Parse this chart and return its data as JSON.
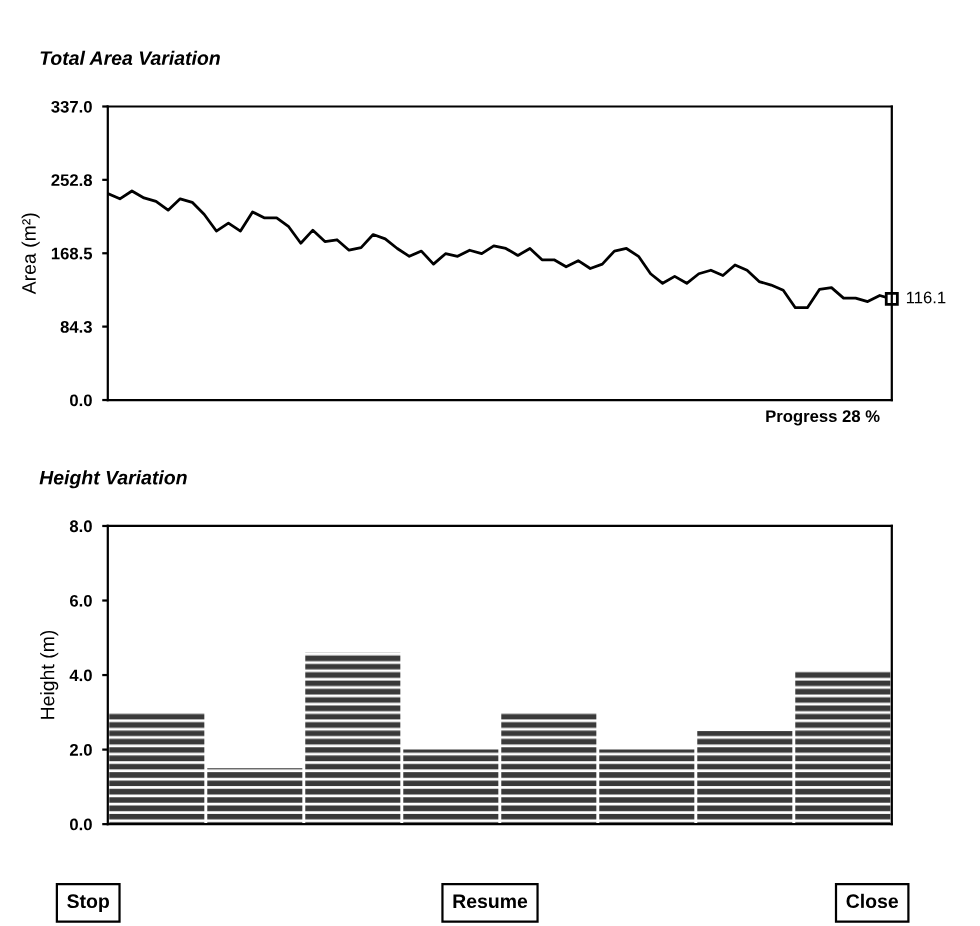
{
  "chart_data": [
    {
      "type": "line",
      "title": "Total Area Variation",
      "ylabel": "Area (m²)",
      "categories": [
        null,
        null,
        null,
        null,
        null,
        null,
        null,
        null,
        null,
        null,
        null,
        null,
        null,
        null,
        null,
        null,
        null,
        null,
        null,
        null,
        null,
        null,
        null,
        null,
        null,
        null,
        null,
        null,
        null,
        null,
        null,
        null,
        null,
        null,
        null,
        null,
        null,
        null,
        null,
        null,
        null,
        null,
        null,
        null,
        null,
        null,
        null,
        null,
        null,
        null,
        null,
        null,
        null,
        null,
        null,
        null,
        null,
        null,
        null,
        null,
        null,
        null,
        null,
        null,
        null,
        null
      ],
      "values": [
        237,
        231,
        240,
        232,
        228,
        218,
        231,
        227,
        213,
        194,
        203,
        194,
        216,
        209,
        209,
        199,
        180,
        195,
        182,
        184,
        172,
        175,
        190,
        185,
        174,
        165,
        171,
        156,
        168,
        165,
        172,
        168,
        177,
        174,
        166,
        174,
        161,
        161,
        153,
        160,
        151,
        156,
        171,
        174,
        165,
        145,
        134,
        142,
        134,
        145,
        149,
        143,
        155,
        149,
        136,
        132,
        126,
        106,
        106,
        127,
        129,
        117,
        117,
        113,
        120,
        116.1
      ],
      "color": "#000000",
      "ylim": [
        0,
        337.0
      ],
      "yticks": [
        {
          "value": 0,
          "label": "0.0"
        },
        {
          "value": 84.3,
          "label": "84.3"
        },
        {
          "value": 168.5,
          "label": "168.5"
        },
        {
          "value": 252.8,
          "label": "252.8"
        },
        {
          "value": 337.0,
          "label": "337.0"
        }
      ],
      "grid": false,
      "legend": false,
      "annotations": [
        "116.1",
        "Progress 28 %"
      ]
    },
    {
      "type": "bar",
      "title": "Height Variation",
      "ylabel": "Height (m)",
      "categories": [
        null,
        null,
        null,
        null,
        null,
        null,
        null,
        null
      ],
      "values": [
        3.0,
        1.5,
        4.6,
        2.0,
        3.0,
        2.0,
        2.5,
        4.1
      ],
      "color": "#3a3a3a",
      "ylim": [
        0,
        8.0
      ],
      "yticks": [
        {
          "value": 0,
          "label": "0.0"
        },
        {
          "value": 2,
          "label": "2.0"
        },
        {
          "value": 4,
          "label": "4.0"
        },
        {
          "value": 6,
          "label": "6.0"
        },
        {
          "value": 8,
          "label": "8.0"
        }
      ],
      "grid": false,
      "legend": false,
      "annotations": [
        "Stop",
        "Resume",
        "Close"
      ]
    }
  ]
}
